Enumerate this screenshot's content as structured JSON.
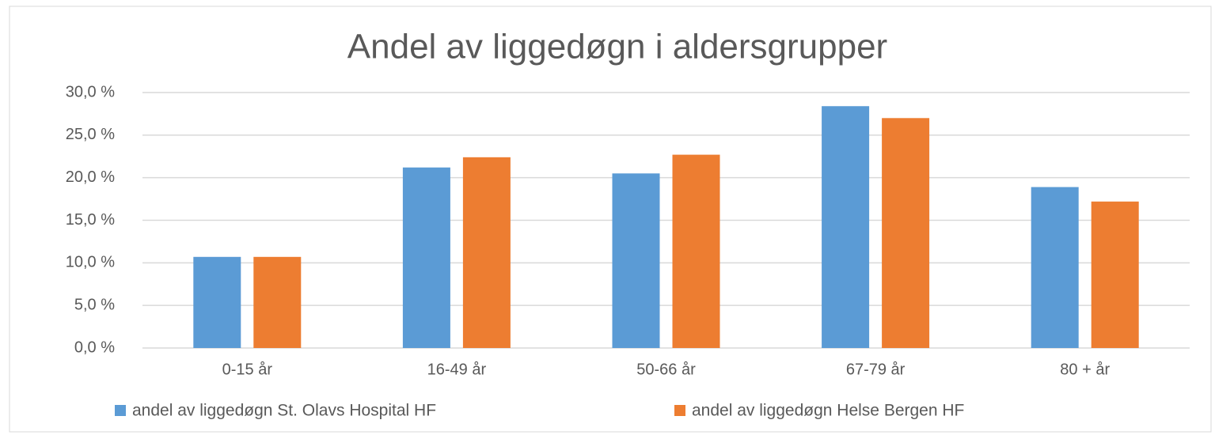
{
  "chart_data": {
    "type": "bar",
    "title": "Andel av liggedøgn i aldersgrupper",
    "categories": [
      "0-15 år",
      "16-49 år",
      "50-66 år",
      "67-79 år",
      "80 + år"
    ],
    "series": [
      {
        "name": "andel av liggedøgn St. Olavs Hospital HF",
        "color": "#5b9bd5",
        "values": [
          10.7,
          21.2,
          20.5,
          28.4,
          18.9
        ]
      },
      {
        "name": "andel av liggedøgn Helse Bergen HF",
        "color": "#ed7d31",
        "values": [
          10.7,
          22.4,
          22.7,
          27.0,
          17.2
        ]
      }
    ],
    "ylim": [
      0,
      30
    ],
    "yticks": [
      {
        "value": 0,
        "label": "0,0 %"
      },
      {
        "value": 5,
        "label": "5,0 %"
      },
      {
        "value": 10,
        "label": "10,0 %"
      },
      {
        "value": 15,
        "label": "15,0 %"
      },
      {
        "value": 20,
        "label": "20,0 %"
      },
      {
        "value": 25,
        "label": "25,0 %"
      },
      {
        "value": 30,
        "label": "30,0 %"
      }
    ],
    "grid": true,
    "legend": "bottom"
  }
}
